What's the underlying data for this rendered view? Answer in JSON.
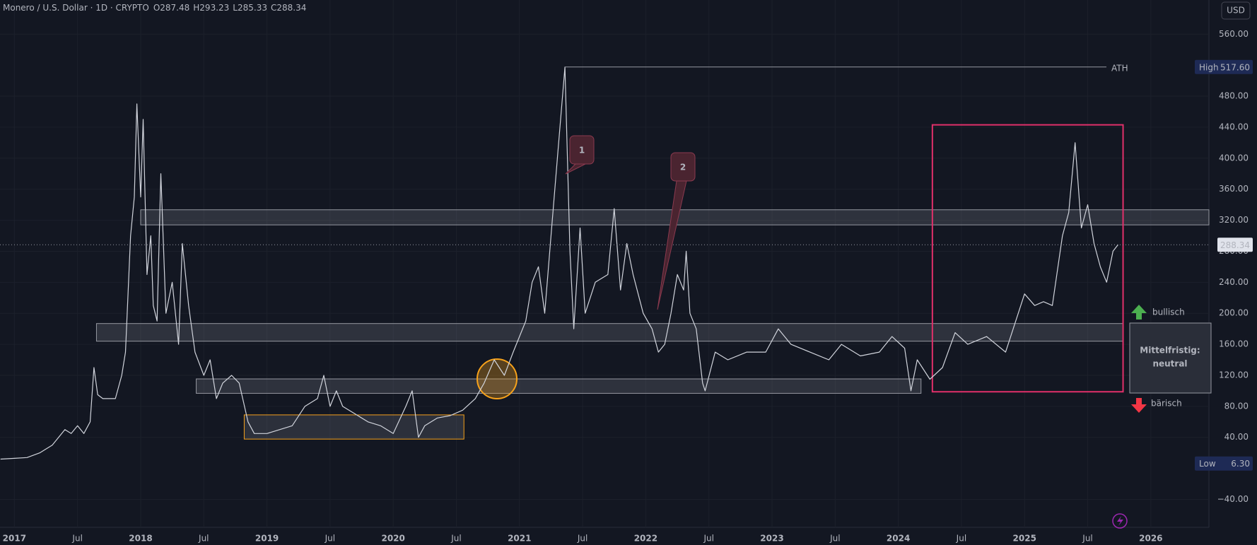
{
  "chart_data": {
    "type": "line",
    "title": "Monero / U.S. Dollar · 1D · CRYPTO",
    "ohlc": [
      {
        "label": "O",
        "value": 287.48
      },
      {
        "label": "H",
        "value": 293.23
      },
      {
        "label": "L",
        "value": 285.33
      },
      {
        "label": "C",
        "value": 288.34
      }
    ],
    "currency": "USD",
    "xlim": [
      2016.886,
      2026.46
    ],
    "ylim": [
      -76,
      604
    ],
    "xticks": [
      {
        "value": 2017,
        "label": "2017"
      },
      {
        "value": 2017.5,
        "label": "Jul"
      },
      {
        "value": 2018,
        "label": "2018"
      },
      {
        "value": 2018.5,
        "label": "Jul"
      },
      {
        "value": 2019,
        "label": "2019"
      },
      {
        "value": 2019.5,
        "label": "Jul"
      },
      {
        "value": 2020,
        "label": "2020"
      },
      {
        "value": 2020.5,
        "label": "Jul"
      },
      {
        "value": 2021,
        "label": "2021"
      },
      {
        "value": 2021.5,
        "label": "Jul"
      },
      {
        "value": 2022,
        "label": "2022"
      },
      {
        "value": 2022.5,
        "label": "Jul"
      },
      {
        "value": 2023,
        "label": "2023"
      },
      {
        "value": 2023.5,
        "label": "Jul"
      },
      {
        "value": 2024,
        "label": "2024"
      },
      {
        "value": 2024.5,
        "label": "Jul"
      },
      {
        "value": 2025,
        "label": "2025"
      },
      {
        "value": 2025.5,
        "label": "Jul"
      },
      {
        "value": 2026,
        "label": "2026"
      }
    ],
    "yticks": [
      {
        "value": -40,
        "label": "−40.00"
      },
      {
        "value": 40,
        "label": "40.00"
      },
      {
        "value": 80,
        "label": "80.00"
      },
      {
        "value": 120,
        "label": "120.00"
      },
      {
        "value": 160,
        "label": "160.00"
      },
      {
        "value": 200,
        "label": "200.00"
      },
      {
        "value": 240,
        "label": "240.00"
      },
      {
        "value": 280,
        "label": "280.00"
      },
      {
        "value": 320,
        "label": "320.00"
      },
      {
        "value": 360,
        "label": "360.00"
      },
      {
        "value": 400,
        "label": "400.00"
      },
      {
        "value": 440,
        "label": "440.00"
      },
      {
        "value": 480,
        "label": "480.00"
      },
      {
        "value": 560,
        "label": "560.00"
      }
    ],
    "grid": true,
    "series": [
      {
        "name": "Monero / U.S. Dollar",
        "color": "#d1d4dc",
        "x": [
          2016.89,
          2017.0,
          2017.1,
          2017.2,
          2017.3,
          2017.4,
          2017.45,
          2017.5,
          2017.55,
          2017.6,
          2017.63,
          2017.66,
          2017.7,
          2017.75,
          2017.8,
          2017.85,
          2017.88,
          2017.92,
          2017.95,
          2017.97,
          2018.0,
          2018.02,
          2018.05,
          2018.08,
          2018.1,
          2018.13,
          2018.16,
          2018.2,
          2018.25,
          2018.3,
          2018.33,
          2018.38,
          2018.43,
          2018.5,
          2018.55,
          2018.6,
          2018.65,
          2018.72,
          2018.78,
          2018.85,
          2018.9,
          2019.0,
          2019.1,
          2019.2,
          2019.3,
          2019.4,
          2019.45,
          2019.5,
          2019.55,
          2019.6,
          2019.7,
          2019.8,
          2019.9,
          2020.0,
          2020.1,
          2020.15,
          2020.2,
          2020.25,
          2020.35,
          2020.45,
          2020.55,
          2020.65,
          2020.72,
          2020.8,
          2020.88,
          2020.95,
          2021.0,
          2021.05,
          2021.1,
          2021.15,
          2021.2,
          2021.25,
          2021.3,
          2021.36,
          2021.4,
          2021.43,
          2021.48,
          2021.52,
          2021.6,
          2021.7,
          2021.75,
          2021.8,
          2021.85,
          2021.9,
          2021.98,
          2022.05,
          2022.1,
          2022.15,
          2022.2,
          2022.25,
          2022.3,
          2022.32,
          2022.35,
          2022.4,
          2022.45,
          2022.47,
          2022.55,
          2022.65,
          2022.8,
          2022.95,
          2023.05,
          2023.15,
          2023.3,
          2023.45,
          2023.55,
          2023.7,
          2023.85,
          2023.95,
          2024.05,
          2024.1,
          2024.15,
          2024.25,
          2024.35,
          2024.45,
          2024.55,
          2024.7,
          2024.85,
          2024.95,
          2025.0,
          2025.08,
          2025.15,
          2025.22,
          2025.3,
          2025.35,
          2025.4,
          2025.45,
          2025.5,
          2025.55,
          2025.6,
          2025.65,
          2025.7,
          2025.74
        ],
        "values": [
          12,
          13,
          14,
          20,
          30,
          50,
          45,
          55,
          45,
          60,
          130,
          95,
          90,
          90,
          90,
          120,
          150,
          300,
          350,
          470,
          350,
          450,
          250,
          300,
          210,
          190,
          380,
          200,
          240,
          160,
          290,
          210,
          150,
          120,
          140,
          90,
          110,
          120,
          110,
          60,
          45,
          45,
          50,
          55,
          80,
          90,
          120,
          80,
          100,
          80,
          70,
          60,
          55,
          45,
          80,
          100,
          40,
          55,
          65,
          68,
          75,
          90,
          110,
          140,
          120,
          150,
          170,
          190,
          240,
          260,
          200,
          300,
          400,
          517.6,
          280,
          180,
          310,
          200,
          240,
          250,
          335,
          230,
          290,
          250,
          200,
          180,
          150,
          160,
          200,
          250,
          230,
          280,
          200,
          180,
          110,
          100,
          150,
          140,
          150,
          150,
          180,
          160,
          150,
          140,
          160,
          145,
          150,
          170,
          155,
          100,
          140,
          115,
          130,
          175,
          160,
          170,
          150,
          200,
          225,
          210,
          215,
          210,
          300,
          330,
          420,
          310,
          340,
          290,
          260,
          240,
          280,
          288.34
        ]
      }
    ],
    "high": {
      "label": "High",
      "value": 517.6,
      "value_label": "517.60"
    },
    "low": {
      "label": "Low",
      "value": 6.3,
      "value_label": "6.30"
    },
    "last": {
      "value": 288.34
    },
    "ath_label": "ATH",
    "zones": [
      {
        "kind": "gray",
        "x": [
          2018.0,
          2026.46
        ],
        "y": [
          314,
          333.5
        ]
      },
      {
        "kind": "gray",
        "x": [
          2017.65,
          2025.78
        ],
        "y": [
          164,
          186.8
        ]
      },
      {
        "kind": "gray",
        "x": [
          2018.44,
          2024.18
        ],
        "y": [
          96.8,
          115.4
        ]
      },
      {
        "kind": "orange",
        "x": [
          2018.82,
          2020.56
        ],
        "y": [
          37.8,
          69
        ]
      },
      {
        "kind": "pink",
        "x": [
          2024.27,
          2025.78
        ],
        "y": [
          98.8,
          443
        ]
      }
    ],
    "callouts": [
      "1",
      "2"
    ],
    "bullish_label": "bullisch",
    "bearish_label": "bärisch",
    "outlook": [
      "Mittelfristig:",
      "neutral"
    ]
  }
}
